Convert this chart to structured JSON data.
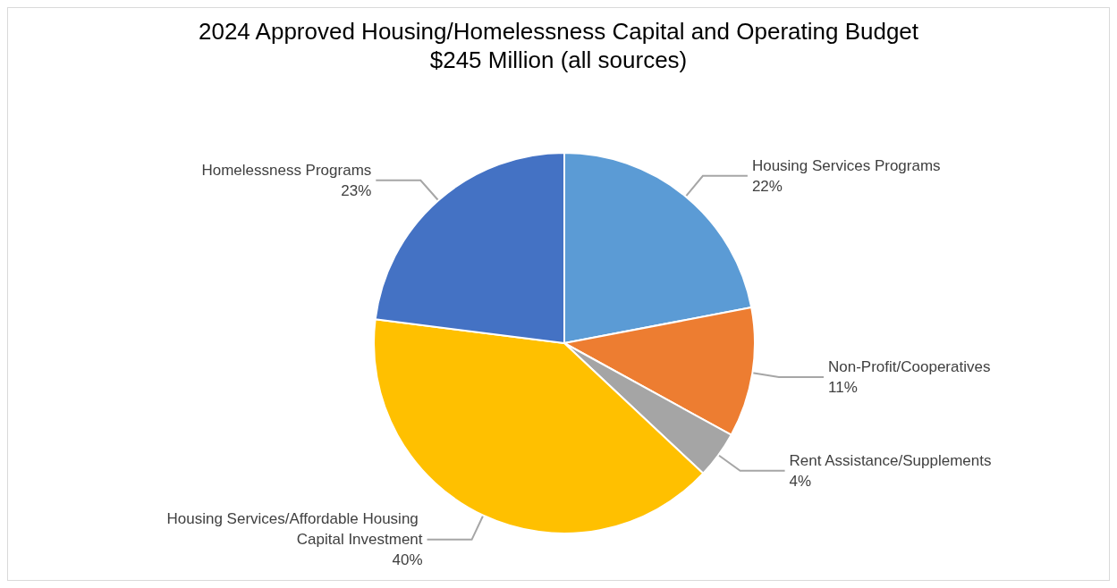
{
  "chart_data": {
    "type": "pie",
    "title": "2024 Approved Housing/Homelessness Capital and Operating Budget",
    "subtitle": "$245 Million (all sources)",
    "categories": [
      "Housing Services Programs",
      "Non-Profit/Cooperatives",
      "Rent Assistance/Supplements",
      "Housing Services/Affordable Housing Capital Investment",
      "Homelessness Programs"
    ],
    "values": [
      22,
      11,
      4,
      40,
      23
    ],
    "value_labels": [
      "22%",
      "11%",
      "4%",
      "40%",
      "23%"
    ],
    "colors": [
      "#5b9bd5",
      "#ed7d31",
      "#a5a5a5",
      "#ffc000",
      "#4472c4"
    ],
    "legend": false
  }
}
